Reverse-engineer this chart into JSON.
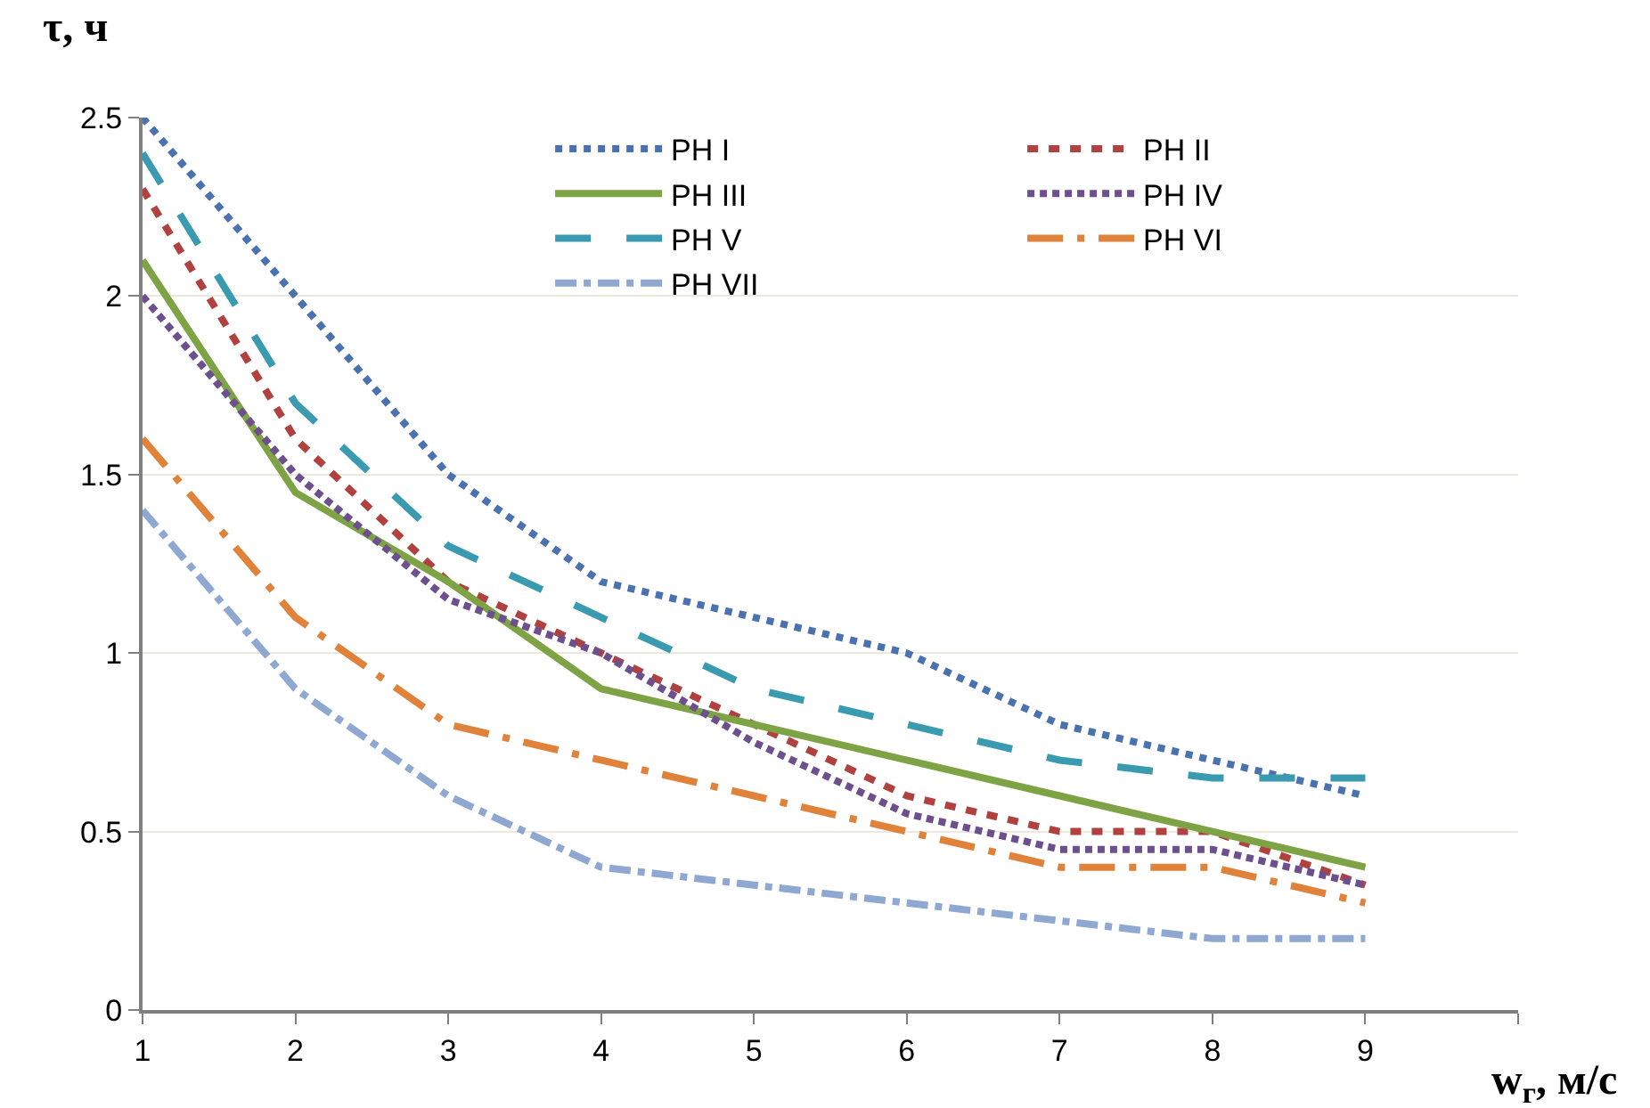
{
  "chart_data": {
    "type": "line",
    "xlabel": "w$_{г}$, м/с",
    "ylabel": "τ, ч",
    "x": [
      1,
      2,
      3,
      4,
      5,
      6,
      7,
      8,
      9
    ],
    "xlim": [
      1,
      10
    ],
    "xticks": [
      1,
      2,
      3,
      4,
      5,
      6,
      7,
      8,
      9,
      {
        "value": 10,
        "label": null
      }
    ],
    "ylim": [
      0,
      2.5
    ],
    "yticks": [
      0,
      0.5,
      1,
      1.5,
      2,
      2.5
    ],
    "grid": "y",
    "legend": "top right",
    "marker": "none",
    "series": [
      {
        "name": "PH I",
        "color": "#4a72b0",
        "line_style": "dotted",
        "values": [
          2.5,
          2.0,
          1.5,
          1.2,
          1.1,
          1.0,
          0.8,
          0.7,
          0.6
        ]
      },
      {
        "name": "PH II",
        "color": "#b0413e",
        "line_style": "dashed",
        "values": [
          2.3,
          1.6,
          1.2,
          1.0,
          0.8,
          0.6,
          0.5,
          0.5,
          0.35
        ]
      },
      {
        "name": "PH III",
        "color": "#7ea345",
        "line_style": "solid",
        "values": [
          2.1,
          1.45,
          1.2,
          0.9,
          0.8,
          0.7,
          0.6,
          0.5,
          0.4
        ]
      },
      {
        "name": "PH IV",
        "color": "#6d4f8e",
        "line_style": "dash",
        "values": [
          2.0,
          1.5,
          1.15,
          1.0,
          0.75,
          0.55,
          0.45,
          0.45,
          0.35
        ]
      },
      {
        "name": "PH V",
        "color": "#3a9ab0",
        "line_style": "longdash",
        "values": [
          2.4,
          1.7,
          1.3,
          1.1,
          0.9,
          0.8,
          0.7,
          0.65,
          0.65
        ]
      },
      {
        "name": "PH VI",
        "color": "#e0823a",
        "line_style": "longdashdot",
        "values": [
          1.6,
          1.1,
          0.8,
          0.7,
          0.6,
          0.5,
          0.4,
          0.4,
          0.3
        ]
      },
      {
        "name": "PH VII",
        "color": "#8fa8d2",
        "line_style": "dashdot",
        "values": [
          1.4,
          0.9,
          0.6,
          0.4,
          0.35,
          0.3,
          0.25,
          0.2,
          0.2
        ]
      }
    ]
  }
}
